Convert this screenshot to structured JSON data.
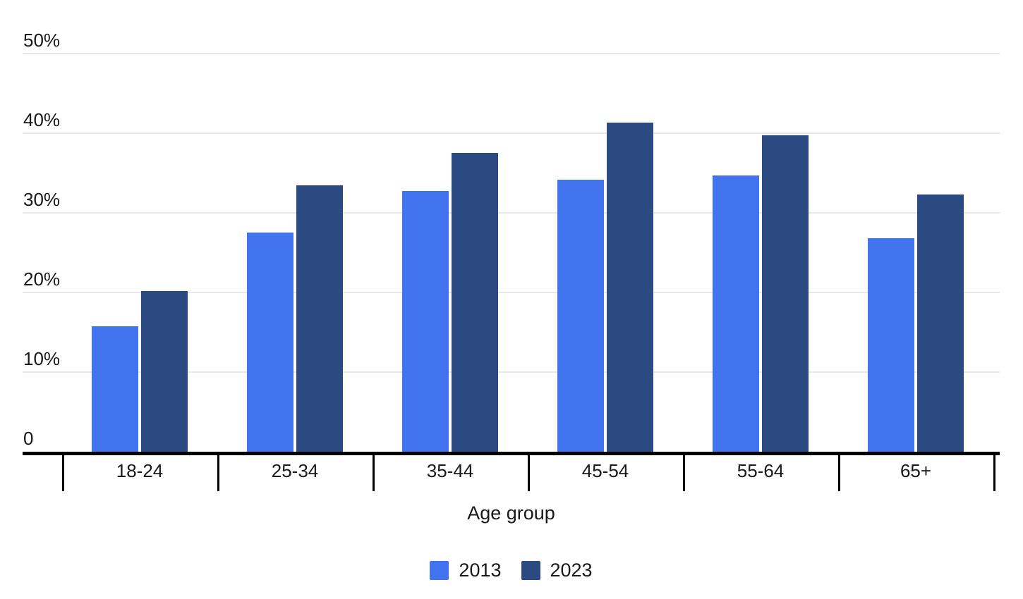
{
  "chart_data": {
    "type": "bar",
    "title": "",
    "categories": [
      "18-24",
      "25-34",
      "35-44",
      "45-54",
      "55-64",
      "65+"
    ],
    "series": [
      {
        "name": "2013",
        "color": "#4173ee",
        "values": [
          15.7,
          27.5,
          32.7,
          34.1,
          34.7,
          26.8
        ]
      },
      {
        "name": "2023",
        "color": "#2c4a82",
        "values": [
          20.2,
          33.4,
          37.5,
          41.3,
          39.7,
          32.3
        ]
      }
    ],
    "xlabel": "Age group",
    "ylabel": "",
    "ylim": [
      0,
      50
    ],
    "yticks": [
      {
        "value": 0,
        "label": "0"
      },
      {
        "value": 10,
        "label": "10%"
      },
      {
        "value": 20,
        "label": "20%"
      },
      {
        "value": 30,
        "label": "30%"
      },
      {
        "value": 40,
        "label": "40%"
      },
      {
        "value": 50,
        "label": "50%"
      }
    ],
    "grid": true,
    "legend_position": "bottom"
  },
  "colors": {
    "series_2013": "#4173ee",
    "series_2023": "#2c4a82",
    "gridline": "#e8e8e8",
    "axis": "#000000",
    "text": "#191919"
  }
}
